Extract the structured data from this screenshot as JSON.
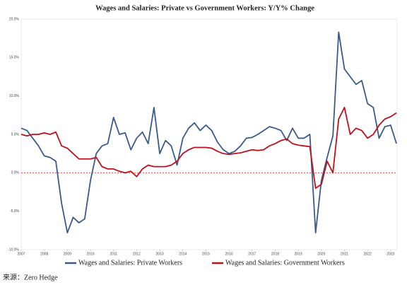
{
  "chart_data": {
    "type": "line",
    "title": "Wages and Salaries: Private vs Government Workers: Y/Y% Change",
    "source": "来源：Zero Hedge",
    "x": [
      2007,
      2007.25,
      2007.5,
      2007.75,
      2008,
      2008.25,
      2008.5,
      2008.75,
      2009,
      2009.25,
      2009.5,
      2009.75,
      2010,
      2010.25,
      2010.5,
      2010.75,
      2011,
      2011.25,
      2011.5,
      2011.75,
      2012,
      2012.25,
      2012.5,
      2012.75,
      2013,
      2013.25,
      2013.5,
      2013.75,
      2014,
      2014.25,
      2014.5,
      2014.75,
      2015,
      2015.25,
      2015.5,
      2015.75,
      2016,
      2016.25,
      2016.5,
      2016.75,
      2017,
      2017.25,
      2017.5,
      2017.75,
      2018,
      2018.25,
      2018.5,
      2018.75,
      2019,
      2019.25,
      2019.5,
      2019.75,
      2020,
      2020.25,
      2020.5,
      2020.75,
      2021,
      2021.25,
      2021.5,
      2021.75,
      2022,
      2022.25,
      2022.5,
      2022.75,
      2023,
      2023.25
    ],
    "series": [
      {
        "name": "Wages and Salaries: Private Workers",
        "color": "#3a5a8c",
        "values": [
          5.8,
          5.5,
          4.5,
          3.5,
          2.2,
          2.0,
          1.5,
          -4.0,
          -7.8,
          -5.8,
          -6.5,
          -6.0,
          -1.0,
          2.5,
          3.5,
          3.8,
          7.2,
          5.0,
          5.2,
          3.0,
          4.5,
          5.3,
          3.8,
          8.5,
          2.5,
          4.2,
          3.5,
          1.0,
          4.5,
          5.8,
          6.5,
          5.5,
          6.2,
          5.5,
          4.0,
          3.0,
          2.5,
          2.8,
          3.5,
          4.5,
          4.6,
          5.0,
          5.5,
          6.0,
          5.8,
          5.5,
          4.2,
          5.8,
          4.5,
          4.5,
          5.0,
          -7.8,
          -1.0,
          2.0,
          4.8,
          18.3,
          13.5,
          12.5,
          11.5,
          12.0,
          9.0,
          8.5,
          4.5,
          6.0,
          6.2,
          3.8
        ]
      },
      {
        "name": "Wages and Salaries: Government Workers",
        "color": "#c0101a",
        "values": [
          5.0,
          4.8,
          5.0,
          5.0,
          5.2,
          5.0,
          5.3,
          3.5,
          3.2,
          2.5,
          1.8,
          1.8,
          1.8,
          2.0,
          0.8,
          0.5,
          0.5,
          0.2,
          0.0,
          0.2,
          -0.5,
          0.5,
          1.0,
          0.8,
          0.8,
          0.8,
          1.0,
          1.5,
          2.5,
          3.0,
          3.3,
          3.3,
          3.3,
          3.2,
          2.8,
          2.5,
          2.4,
          2.5,
          2.6,
          2.8,
          3.0,
          2.9,
          3.0,
          3.5,
          3.8,
          4.2,
          4.4,
          3.8,
          3.6,
          3.5,
          3.4,
          -2.0,
          -1.5,
          1.5,
          0.0,
          7.0,
          8.5,
          5.0,
          5.8,
          5.5,
          4.5,
          5.0,
          6.2,
          7.0,
          7.3,
          7.8
        ]
      }
    ],
    "xlim": [
      2007,
      2023.28
    ],
    "xticks": [
      2007,
      2008,
      2009,
      2010,
      2011,
      2012,
      2013,
      2014,
      2015,
      2016,
      2017,
      2018,
      2019,
      2020,
      2021,
      2022,
      2023
    ],
    "ylim": [
      -10,
      20
    ],
    "yticks": [
      {
        "value": 20,
        "label": "20.0%"
      },
      {
        "value": 15,
        "label": "15.0%"
      },
      {
        "value": 10,
        "label": "10.0%"
      },
      {
        "value": 5,
        "label": "5.0%"
      },
      {
        "value": 0,
        "label": "0.0%"
      },
      {
        "value": -5,
        "label": "-5.0%"
      },
      {
        "value": -10,
        "label": "-10.0%"
      }
    ],
    "zero_line_color": "#e03030"
  }
}
